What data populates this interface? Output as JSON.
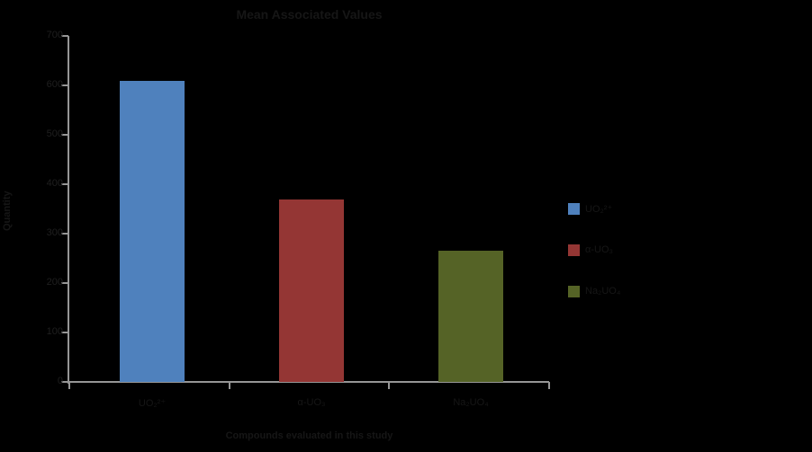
{
  "styles": {
    "background": "#000000",
    "axis_color": "#969696",
    "text_color": "#161616",
    "tick_label_color": "#1f1f1f"
  },
  "chart_data": {
    "type": "bar",
    "title": "Mean Associated Values",
    "categories": [
      "UO₂²⁺",
      "α-UO₃",
      "Na₂UO₄"
    ],
    "values": [
      610,
      370,
      265
    ],
    "bar_colors": [
      "#4f81bd",
      "#943634",
      "#556326"
    ],
    "xlabel": "Compounds evaluated in this study",
    "ylabel": "Quantity",
    "ylim": [
      0,
      700
    ],
    "yticks": [
      0,
      100,
      200,
      300,
      400,
      500,
      600,
      700
    ],
    "grid": false,
    "legend": {
      "position": "right",
      "entries": [
        {
          "label": "UO₂²⁺",
          "color": "#4f81bd"
        },
        {
          "label": "α-UO₃",
          "color": "#943634"
        },
        {
          "label": "Na₂UO₄",
          "color": "#556326"
        }
      ]
    }
  }
}
